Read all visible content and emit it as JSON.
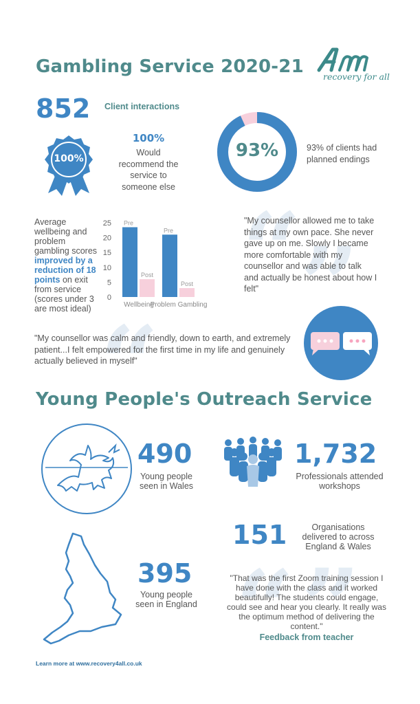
{
  "gambling": {
    "title": "Gambling Service 2020-21",
    "logo_text": "recovery for all",
    "client_count": "852",
    "client_label": "Client interactions",
    "badge_text": "100%",
    "recommend_percent": "100%",
    "recommend_text": "Would recommend the service to someone else",
    "endings_percent": "93%",
    "endings_fraction": 0.93,
    "endings_text": "93% of clients had planned endings",
    "scores_text_1": "Average wellbeing and problem gambling scores ",
    "scores_text_bold": "improved by a reduction of 18 points",
    "scores_text_2": " on exit from service (scores under 3 are most ideal)",
    "quote_1": "\"My counsellor allowed me to take things at my own pace.  She never gave up on me. Slowly I became more comfortable with my counsellor and was able to talk and actually be honest about how I felt\"",
    "quote_2": "\"My counsellor was calm and friendly, down to earth, and extremely patient...I felt empowered for the first time in my life and genuinely actually believed in myself\""
  },
  "chart_data": {
    "type": "bar",
    "categories": [
      "Wellbeing",
      "Problem Gambling"
    ],
    "series": [
      {
        "name": "Pre",
        "values": [
          23.5,
          21
        ],
        "color": "#3f86c4"
      },
      {
        "name": "Post",
        "values": [
          6,
          3
        ],
        "color": "#f7d0dc"
      }
    ],
    "yticks": [
      "25",
      "20",
      "15",
      "10",
      "5",
      "0"
    ],
    "ylim": [
      0,
      25
    ],
    "bar_labels": [
      "Pre",
      "Post",
      "Pre",
      "Post"
    ]
  },
  "youth": {
    "title": "Young People's Outreach Service",
    "wales_count": "490",
    "wales_label": "Young people seen in Wales",
    "professionals_count": "1,732",
    "professionals_label": "Professionals attended workshops",
    "orgs_count": "151",
    "orgs_label": "Organisations delivered to across England & Wales",
    "england_count": "395",
    "england_label": "Young people seen in England",
    "teacher_quote": "\"That was the first Zoom training session I have done with the class and it worked beautifully! The students could engage, could see and hear you clearly. It really was the optimum method of delivering the content.\"",
    "teacher_attrib": "Feedback from teacher"
  },
  "footer": {
    "link_text": "Learn more at www.recovery4all.co.uk"
  },
  "colors": {
    "teal": "#4f8a8b",
    "blue": "#3f86c4",
    "pink": "#f7d0dc"
  }
}
